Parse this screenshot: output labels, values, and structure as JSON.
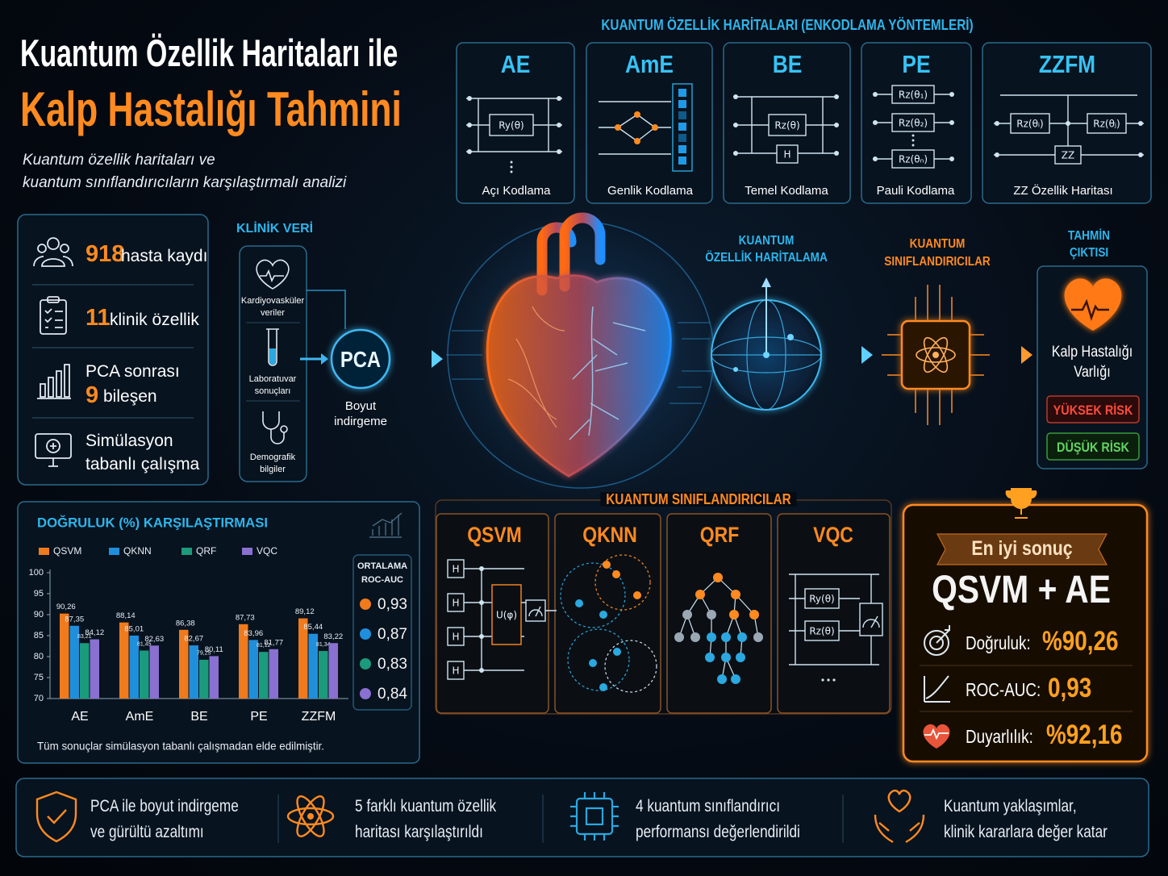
{
  "title": {
    "line1": "Kuantum Özellik Haritaları ile",
    "line2": "Kalp Hastalığı Tahmini",
    "subtitle": [
      "Kuantum özellik haritaları ve",
      "kuantum sınıflandırıcıların karşılaştırmalı analizi"
    ]
  },
  "encodings": {
    "title": "KUANTUM ÖZELLİK HARİTALARI (ENKODLAMA YÖNTEMLERİ)",
    "items": [
      {
        "code": "AE",
        "name": "Açı Kodlama",
        "gates": [
          "Ry(θ)"
        ]
      },
      {
        "code": "AmE",
        "name": "Genlik Kodlama"
      },
      {
        "code": "BE",
        "name": "Temel Kodlama",
        "gates": [
          "Rz(θ)",
          "H"
        ]
      },
      {
        "code": "PE",
        "name": "Pauli Kodlama",
        "gates": [
          "Rz(θ₁)",
          "Rz(θ₂)",
          "Rz(θₙ)"
        ]
      },
      {
        "code": "ZZFM",
        "name": "ZZ Özellik Haritası",
        "gates": [
          "Rz(θᵢ)",
          "Rz(θⱼ)",
          "ZZ"
        ]
      }
    ]
  },
  "stats": [
    {
      "number": "918",
      "text": "hasta kaydı"
    },
    {
      "number": "11",
      "text": "klinik özellik"
    },
    {
      "pre": "PCA sonrası",
      "number": "9",
      "text": "bileşen"
    },
    {
      "lines": [
        "Simülasyon",
        "tabanlı çalışma"
      ]
    }
  ],
  "pipeline": {
    "clinical": {
      "title": "KLİNİK VERİ",
      "items": [
        [
          "Kardiyovasküler",
          "veriler"
        ],
        [
          "Laboratuvar",
          "sonuçları"
        ],
        [
          "Demografik",
          "bilgiler"
        ]
      ]
    },
    "pca": {
      "label": "PCA",
      "caption": [
        "Boyut",
        "indirgeme"
      ]
    },
    "mapping": [
      "KUANTUM",
      "ÖZELLİK HARİTALAMA"
    ],
    "classifier": [
      "KUANTUM",
      "SINIFLANDIRICILAR"
    ],
    "output": {
      "title": [
        "TAHMİN",
        "ÇIKTISI"
      ],
      "label": [
        "Kalp Hastalığı",
        "Varlığı"
      ],
      "high": "YÜKSEK RİSK",
      "low": "DÜŞÜK RİSK"
    }
  },
  "classifiers": {
    "title": "KUANTUM SINIFLANDIRICILAR",
    "items": [
      {
        "name": "QSVM",
        "gates": [
          "H",
          "H",
          "H",
          "H",
          "U(φ)"
        ]
      },
      {
        "name": "QKNN"
      },
      {
        "name": "QRF"
      },
      {
        "name": "VQC",
        "gates": [
          "Ry(θ)",
          "Rz(θ)"
        ]
      }
    ]
  },
  "best": {
    "ribbon": "En iyi sonuç",
    "model": "QSVM + AE",
    "rows": [
      {
        "label": "Doğruluk:",
        "value": "%90,26"
      },
      {
        "label": "ROC-AUC:",
        "value": "0,93"
      },
      {
        "label": "Duyarlılık:",
        "value": "%92,16"
      }
    ]
  },
  "footer": [
    [
      "PCA ile boyut indirgeme",
      "ve gürültü azaltımı"
    ],
    [
      "5 farklı kuantum özellik",
      "haritası karşılaştırıldı"
    ],
    [
      "4 kuantum sınıflandırıcı",
      "performansı değerlendirildi"
    ],
    [
      "Kuantum yaklaşımlar,",
      "klinik kararlara değer katar"
    ]
  ],
  "chart_data": {
    "type": "bar",
    "title": "DOĞRULUK (%) KARŞILAŞTIRMASI",
    "categories": [
      "AE",
      "AmE",
      "BE",
      "PE",
      "ZZFM"
    ],
    "series": [
      {
        "name": "QSVM",
        "color": "#f07a1c",
        "values": [
          90.26,
          88.14,
          86.38,
          87.73,
          89.12
        ],
        "value_labels": [
          "90,26",
          "88,14",
          "86,38",
          "87,73",
          "89,12"
        ]
      },
      {
        "name": "QKNN",
        "color": "#1f8fdc",
        "values": [
          87.35,
          85.01,
          82.67,
          83.96,
          85.44
        ],
        "value_labels": [
          "87,35",
          "85,01",
          "82,67",
          "83,96",
          "85,44"
        ]
      },
      {
        "name": "QRF",
        "color": "#1c9a7c",
        "values": [
          83.21,
          81.45,
          79.25,
          81.12,
          81.34
        ],
        "value_labels": [
          "83,21",
          "81,45",
          "79,25",
          "81,12",
          "81,34"
        ]
      },
      {
        "name": "VQC",
        "color": "#8a70d0",
        "values": [
          84.12,
          82.63,
          80.11,
          81.77,
          83.22
        ],
        "value_labels": [
          "84,12",
          "82,63",
          "80,11",
          "81,77",
          "83,22"
        ]
      }
    ],
    "ylim": [
      70,
      100
    ],
    "yticks": [
      70,
      75,
      80,
      85,
      90,
      95,
      100
    ],
    "grid": false,
    "legend": "top",
    "roc_auc": {
      "title": [
        "ORTALAMA",
        "ROC-AUC"
      ],
      "values": [
        0.93,
        0.87,
        0.83,
        0.84
      ],
      "value_labels": [
        "0,93",
        "0,87",
        "0,83",
        "0,84"
      ]
    },
    "note": "Tüm sonuçlar simülasyon tabanlı çalışmadan elde edilmiştir."
  }
}
